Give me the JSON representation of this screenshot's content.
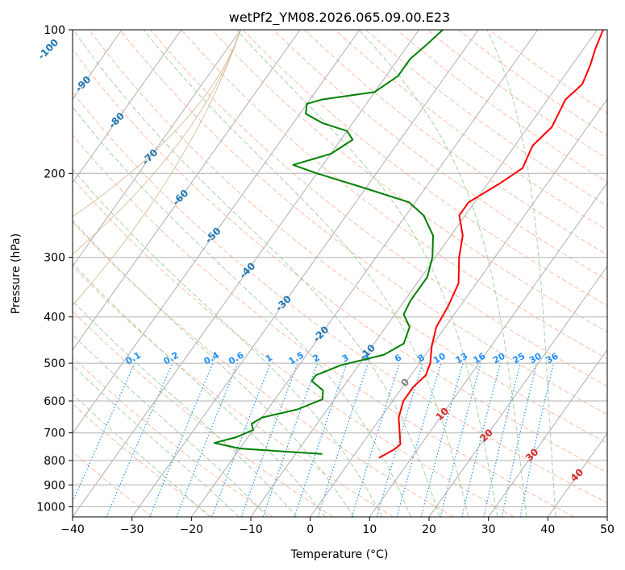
{
  "chart_data": {
    "type": "line",
    "title": "wetPf2_YM08.2026.065.09.00.E23",
    "xlabel": "Temperature (°C)",
    "ylabel": "Pressure (hPa)",
    "xlim": [
      -40,
      50
    ],
    "ylim_pressure": [
      1050,
      100
    ],
    "yscale": "log",
    "skew": "skew-T log-p diagram",
    "grid": true,
    "x_ticks": [
      -40,
      -30,
      -20,
      -10,
      0,
      10,
      20,
      30,
      40,
      50
    ],
    "x_tick_labels": [
      "−40",
      "−30",
      "−20",
      "−10",
      "0",
      "10",
      "20",
      "30",
      "40",
      "50"
    ],
    "y_ticks": [
      100,
      200,
      300,
      400,
      500,
      600,
      700,
      800,
      900,
      1000
    ],
    "y_tick_labels": [
      "100",
      "200",
      "300",
      "400",
      "500",
      "600",
      "700",
      "800",
      "900",
      "1000"
    ],
    "series": [
      {
        "kind": "temperature",
        "color": "#ff0000",
        "points": [
          {
            "p": 790,
            "t": 4.5
          },
          {
            "p": 760,
            "t": 6.0
          },
          {
            "p": 740,
            "t": 6.5
          },
          {
            "p": 700,
            "t": 5.0
          },
          {
            "p": 650,
            "t": 3.0
          },
          {
            "p": 600,
            "t": 1.8
          },
          {
            "p": 560,
            "t": 1.8
          },
          {
            "p": 530,
            "t": 2.5
          },
          {
            "p": 500,
            "t": 1.8
          },
          {
            "p": 460,
            "t": 0.0
          },
          {
            "p": 420,
            "t": -1.5
          },
          {
            "p": 380,
            "t": -2.0
          },
          {
            "p": 340,
            "t": -3.0
          },
          {
            "p": 300,
            "t": -6.0
          },
          {
            "p": 270,
            "t": -8.0
          },
          {
            "p": 245,
            "t": -11.0
          },
          {
            "p": 230,
            "t": -11.0
          },
          {
            "p": 210,
            "t": -8.0
          },
          {
            "p": 195,
            "t": -6.0
          },
          {
            "p": 175,
            "t": -7.0
          },
          {
            "p": 160,
            "t": -6.0
          },
          {
            "p": 140,
            "t": -7.0
          },
          {
            "p": 130,
            "t": -6.0
          },
          {
            "p": 118,
            "t": -7.0
          },
          {
            "p": 110,
            "t": -8.0
          },
          {
            "p": 100,
            "t": -9.0
          }
        ]
      },
      {
        "kind": "dewpoint",
        "color": "#008000",
        "points": [
          {
            "p": 775,
            "t": -5.5
          },
          {
            "p": 755,
            "t": -20.0
          },
          {
            "p": 735,
            "t": -25.0
          },
          {
            "p": 715,
            "t": -22.0
          },
          {
            "p": 690,
            "t": -20.0
          },
          {
            "p": 670,
            "t": -21.0
          },
          {
            "p": 650,
            "t": -20.0
          },
          {
            "p": 625,
            "t": -15.0
          },
          {
            "p": 595,
            "t": -12.0
          },
          {
            "p": 570,
            "t": -13.0
          },
          {
            "p": 545,
            "t": -16.0
          },
          {
            "p": 530,
            "t": -16.0
          },
          {
            "p": 505,
            "t": -13.0
          },
          {
            "p": 480,
            "t": -7.0
          },
          {
            "p": 455,
            "t": -5.0
          },
          {
            "p": 420,
            "t": -6.0
          },
          {
            "p": 395,
            "t": -8.5
          },
          {
            "p": 370,
            "t": -9.0
          },
          {
            "p": 330,
            "t": -9.0
          },
          {
            "p": 300,
            "t": -10.5
          },
          {
            "p": 270,
            "t": -13.0
          },
          {
            "p": 245,
            "t": -17.0
          },
          {
            "p": 230,
            "t": -21.0
          },
          {
            "p": 215,
            "t": -30.0
          },
          {
            "p": 200,
            "t": -40.0
          },
          {
            "p": 192,
            "t": -45.0
          },
          {
            "p": 182,
            "t": -40.0
          },
          {
            "p": 170,
            "t": -38.0
          },
          {
            "p": 163,
            "t": -40.0
          },
          {
            "p": 157,
            "t": -45.0
          },
          {
            "p": 150,
            "t": -49.0
          },
          {
            "p": 143,
            "t": -50.0
          },
          {
            "p": 140,
            "t": -48.0
          },
          {
            "p": 135,
            "t": -40.0
          },
          {
            "p": 125,
            "t": -38.0
          },
          {
            "p": 115,
            "t": -38.0
          },
          {
            "p": 108,
            "t": -37.0
          },
          {
            "p": 100,
            "t": -36.0
          }
        ]
      }
    ],
    "isotherm_labels": [
      {
        "label": "-100",
        "t": -100,
        "p": 110
      },
      {
        "label": "-90",
        "t": -90,
        "p": 130
      },
      {
        "label": "-80",
        "t": -80,
        "p": 155
      },
      {
        "label": "-70",
        "t": -70,
        "p": 185
      },
      {
        "label": "-60",
        "t": -60,
        "p": 225
      },
      {
        "label": "-50",
        "t": -50,
        "p": 270
      },
      {
        "label": "-40",
        "t": -40,
        "p": 320
      },
      {
        "label": "-30",
        "t": -30,
        "p": 375
      },
      {
        "label": "-20",
        "t": -20,
        "p": 435
      },
      {
        "label": "-10",
        "t": -10,
        "p": 475
      },
      {
        "label": "0",
        "t": 0,
        "p": 550
      },
      {
        "label": "10",
        "t": 10,
        "p": 640
      },
      {
        "label": "20",
        "t": 20,
        "p": 710
      },
      {
        "label": "30",
        "t": 30,
        "p": 780
      },
      {
        "label": "40",
        "t": 40,
        "p": 860
      }
    ],
    "mixing_ratio_labels": [
      "0.1",
      "0.2",
      "0.4",
      "0.6",
      "1",
      "1.5",
      "2",
      "3",
      "4",
      "6",
      "8",
      "10",
      "13",
      "16",
      "20",
      "25",
      "30",
      "36"
    ],
    "mixing_ratio_label_pressure": 500,
    "colors": {
      "grid": "#b0b0b0",
      "dry_adiabat": "#ffa07a",
      "moist_adiabat": "#90c890",
      "mixing_ratio": "#1e90ff",
      "isotherm_label_cold": "#1f77b4",
      "isotherm_label_zero": "#808080",
      "isotherm_label_warm": "#d62728",
      "pressure_contour": "#d2b48c"
    }
  }
}
